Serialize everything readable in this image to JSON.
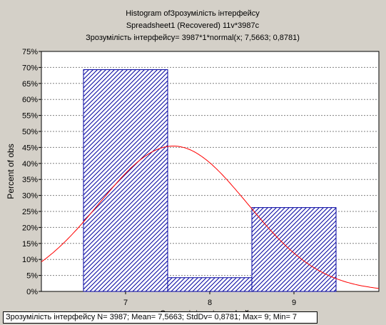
{
  "chart_data": {
    "type": "bar",
    "title_lines": [
      "Histogram ofЗрозумілість інтерфейсу",
      "Spreadsheet1  (Recovered) 11v*3987c",
      "Зрозумілість інтерфейсу= 3987*1*normal(x; 7,5663; 0,8781)"
    ],
    "categories": [
      "7",
      "8",
      "9"
    ],
    "values": [
      69.3,
      4.3,
      26.2
    ],
    "ylabel": "Percent of obs",
    "xlabel": "Зрозумілість інтерфейсу",
    "ylim": [
      0,
      75
    ],
    "y_ticks": [
      "0%",
      "5%",
      "10%",
      "15%",
      "20%",
      "25%",
      "30%",
      "35%",
      "40%",
      "45%",
      "50%",
      "55%",
      "60%",
      "65%",
      "70%",
      "75%"
    ],
    "grid": true,
    "bar_color": "#0000a0",
    "curve_color": "#ff0000",
    "fit": {
      "distribution": "normal",
      "n": 3987,
      "mean": 7.5663,
      "sd": 0.8781
    }
  },
  "stats_text": "Зрозумілість інтерфейсу   N= 3987; Mean= 7,5663; StdDv= 0,8781; Max= 9; Min= 7"
}
